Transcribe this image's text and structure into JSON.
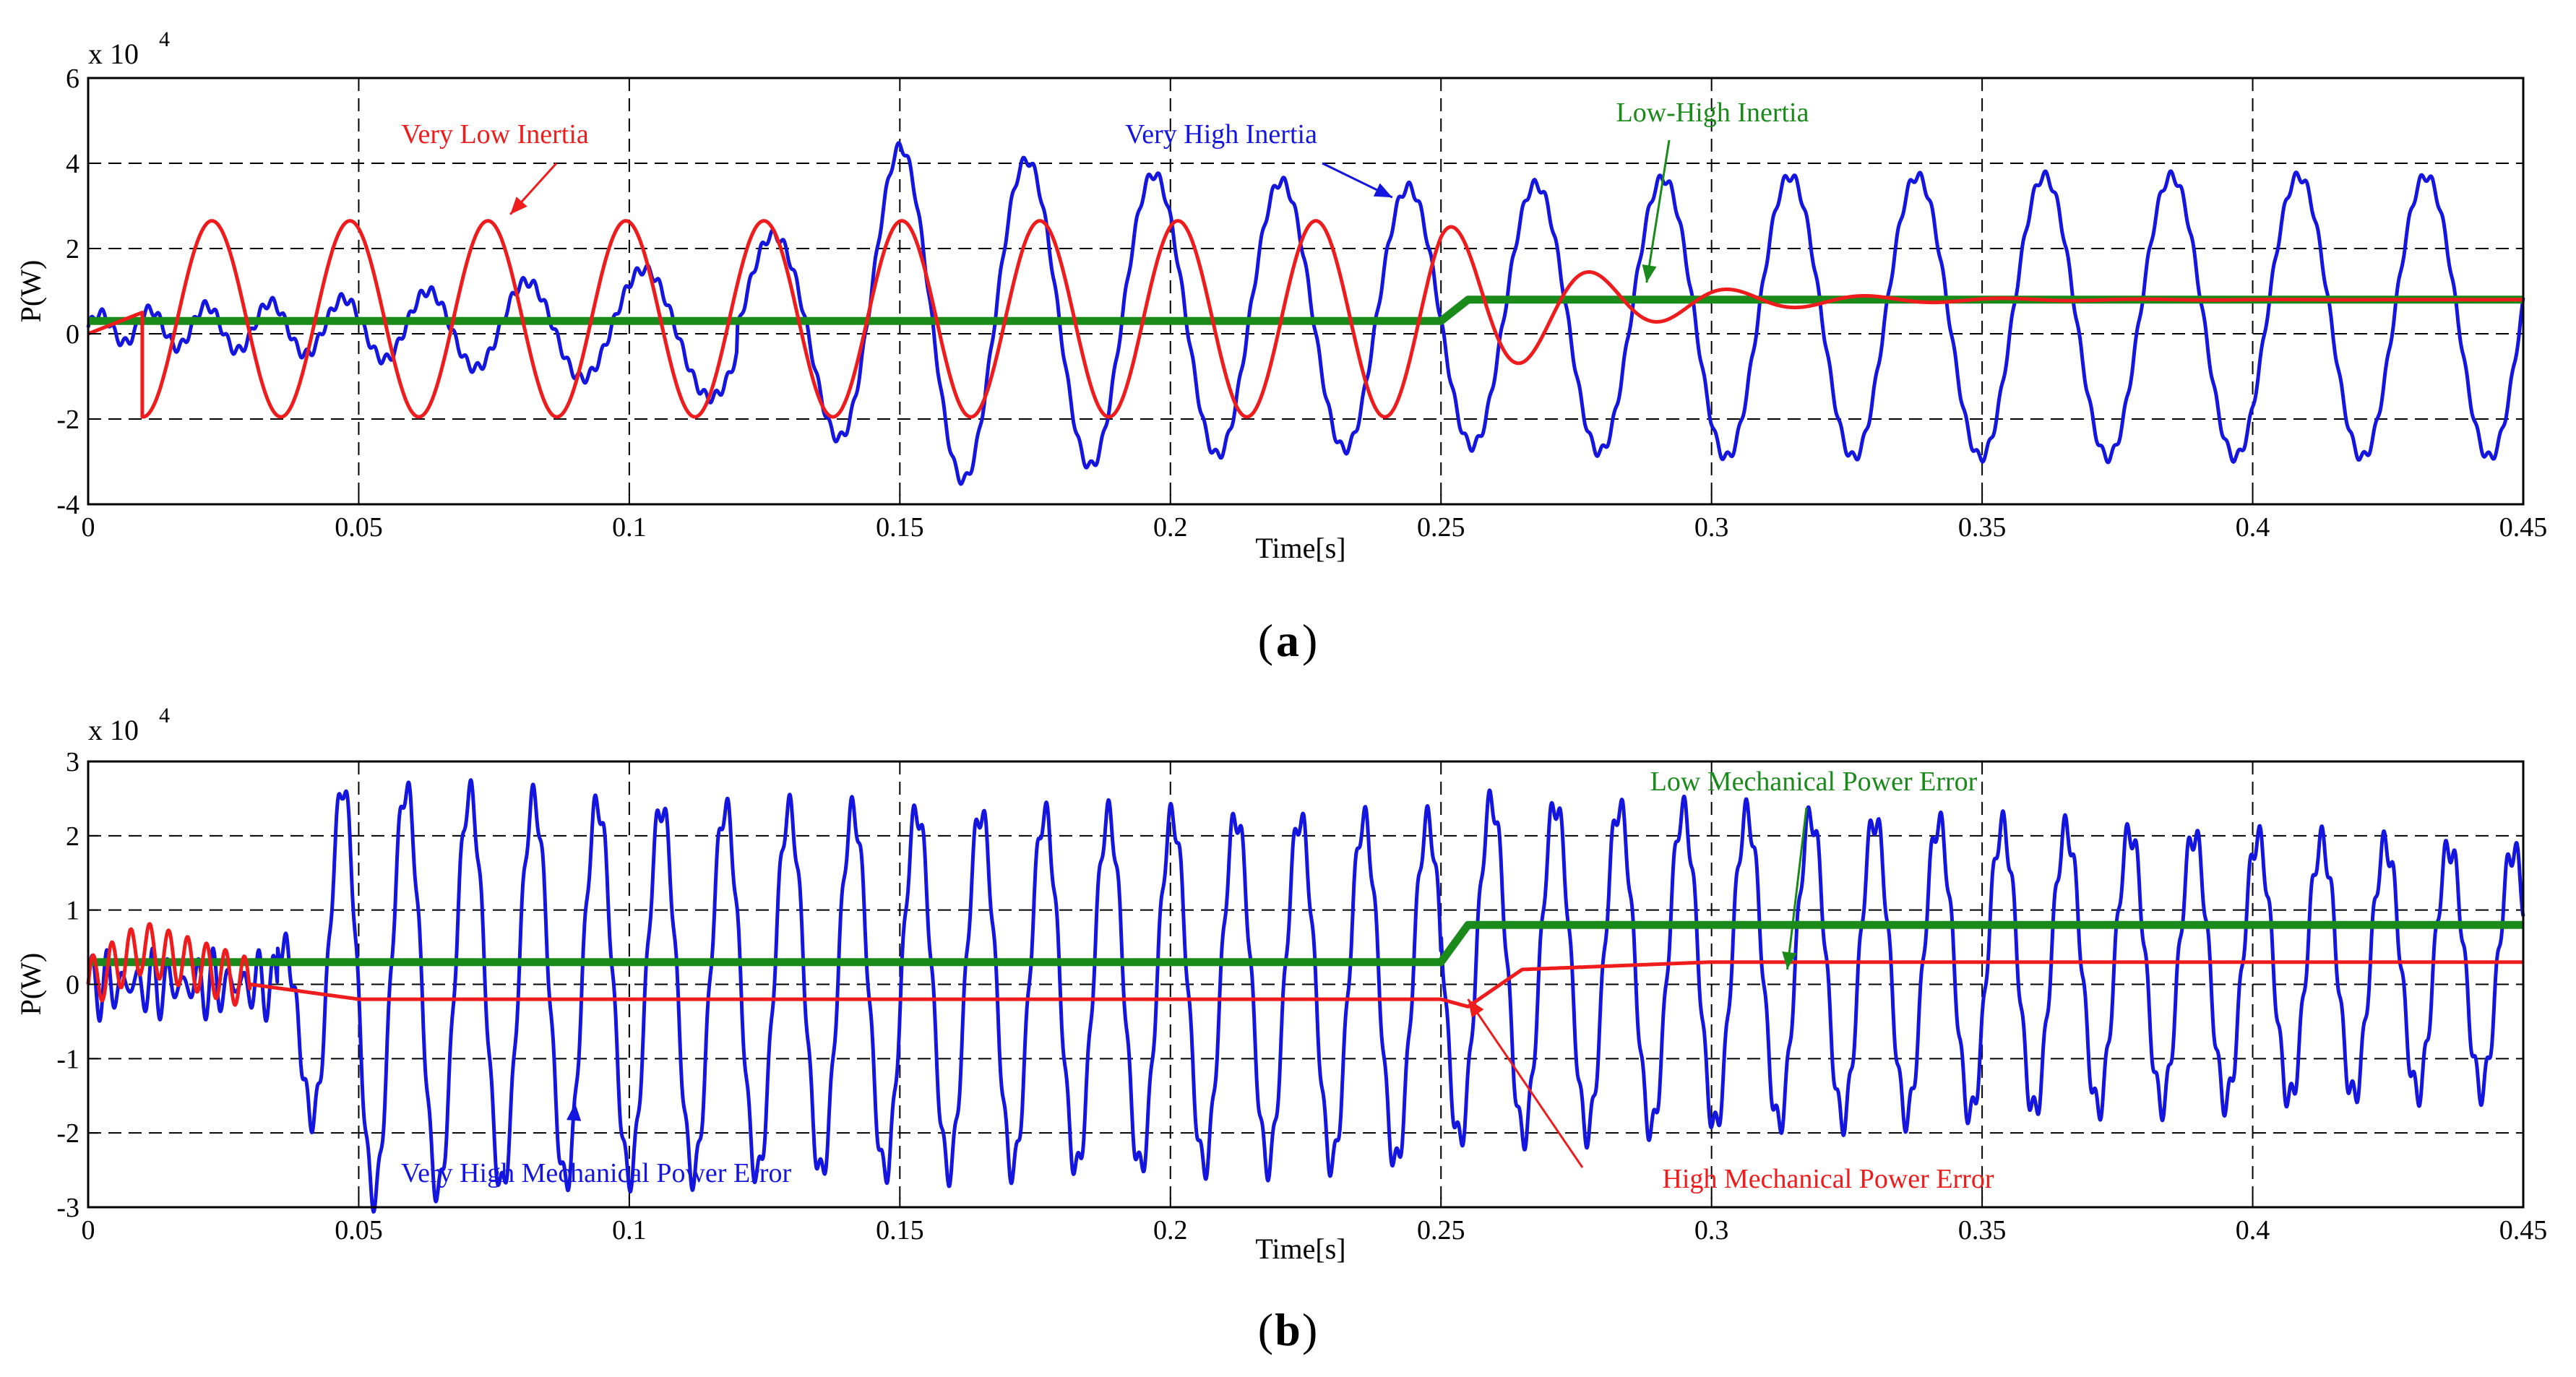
{
  "figure_labels": {
    "a": "a",
    "b": "b"
  },
  "chart_data": [
    {
      "type": "line",
      "panel": "a",
      "xlabel": "Time[s]",
      "ylabel": "P(W)",
      "y_multiplier": "x 10",
      "y_exponent": "4",
      "xlim": [
        0,
        0.45
      ],
      "ylim": [
        -4,
        6
      ],
      "xticks": [
        0,
        0.05,
        0.1,
        0.15,
        0.2,
        0.25,
        0.3,
        0.35,
        0.4,
        0.45
      ],
      "xtick_labels": [
        "0",
        "0.05",
        "0.1",
        "0.15",
        "0.2",
        "0.25",
        "0.3",
        "0.35",
        "0.4",
        "0.45"
      ],
      "yticks": [
        -4,
        -2,
        0,
        2,
        4,
        6
      ],
      "ytick_labels": [
        "-4",
        "-2",
        "0",
        "2",
        "4",
        "6"
      ],
      "grid": true,
      "colors": {
        "very_high": "#1515e0",
        "very_low": "#ee1c1c",
        "low_high": "#1a8a1a"
      },
      "series": [
        {
          "name": "Very High Inertia",
          "color": "#1515e0",
          "description": "oscillation growing from ~0.5 to ~4 (x10^4 W), period ~0.024 s",
          "x": [
            0,
            0.02,
            0.05,
            0.1,
            0.13,
            0.15,
            0.2,
            0.25,
            0.3,
            0.35,
            0.4,
            0.45
          ],
          "amplitude": [
            0.3,
            0.5,
            0.7,
            1.3,
            2.0,
            4.0,
            3.3,
            3.0,
            3.3,
            3.3,
            3.3,
            3.3
          ]
        },
        {
          "name": "Very Low Inertia",
          "color": "#ee1c1c",
          "description": "damped oscillation settling to ~0.8 (x10^4 W)",
          "x": [
            0.023,
            0.035,
            0.05,
            0.06,
            0.075,
            0.087,
            0.1,
            0.12,
            0.15,
            0.2,
            0.25,
            0.265,
            0.285,
            0.3,
            0.325,
            0.45
          ],
          "y": [
            2.7,
            -2.0,
            2.6,
            -1.9,
            2.6,
            -1.9,
            2.5,
            2.5,
            2.3,
            2.4,
            2.2,
            -0.2,
            1.4,
            0.4,
            1.1,
            0.8
          ]
        },
        {
          "name": "Low-High Inertia",
          "color": "#1a8a1a",
          "x": [
            0,
            0.25,
            0.255,
            0.45
          ],
          "y": [
            0.3,
            0.3,
            0.8,
            0.8
          ]
        }
      ],
      "annotations": [
        {
          "text": "Very Low Inertia",
          "color": "#ee1c1c",
          "points_to": [
            0.078,
            2.8
          ]
        },
        {
          "text": "Very High Inertia",
          "color": "#1515e0",
          "points_to": [
            0.241,
            3.2
          ]
        },
        {
          "text": "Low-High Inertia",
          "color": "#1a8a1a",
          "points_to": [
            0.288,
            1.2
          ]
        }
      ]
    },
    {
      "type": "line",
      "panel": "b",
      "xlabel": "Time[s]",
      "ylabel": "P(W)",
      "y_multiplier": "x 10",
      "y_exponent": "4",
      "xlim": [
        0,
        0.45
      ],
      "ylim": [
        -3,
        3
      ],
      "xticks": [
        0,
        0.05,
        0.1,
        0.15,
        0.2,
        0.25,
        0.3,
        0.35,
        0.4,
        0.45
      ],
      "xtick_labels": [
        "0",
        "0.05",
        "0.1",
        "0.15",
        "0.2",
        "0.25",
        "0.3",
        "0.35",
        "0.4",
        "0.45"
      ],
      "yticks": [
        -3,
        -2,
        -1,
        0,
        1,
        2,
        3
      ],
      "ytick_labels": [
        "-3",
        "-2",
        "-1",
        "0",
        "1",
        "2",
        "3"
      ],
      "grid": true,
      "series": [
        {
          "name": "Very High Mechanical Power Error",
          "color": "#1515e0",
          "description": "fast oscillation, amplitude ~2.5 (x10^4 W), period ~0.0115 s after t=0.035",
          "x": [
            0,
            0.035,
            0.047,
            0.1,
            0.25,
            0.45
          ],
          "amplitude": [
            0.5,
            0.5,
            2.8,
            2.5,
            2.3,
            1.6
          ]
        },
        {
          "name": "High Mechanical Power Error",
          "color": "#ee1c1c",
          "x": [
            0,
            0.01,
            0.03,
            0.05,
            0.25,
            0.255,
            0.265,
            0.3,
            0.45
          ],
          "y": [
            0,
            0.5,
            0,
            -0.2,
            -0.2,
            -0.3,
            0.2,
            0.3,
            0.3
          ]
        },
        {
          "name": "Low Mechanical Power Error",
          "color": "#1a8a1a",
          "x": [
            0,
            0.25,
            0.255,
            0.45
          ],
          "y": [
            0.3,
            0.3,
            0.8,
            0.8
          ]
        }
      ],
      "annotations": [
        {
          "text": "Low Mechanical Power Error",
          "color": "#1a8a1a",
          "points_to": [
            0.314,
            0.2
          ]
        },
        {
          "text": "Very High Mechanical Power Error",
          "color": "#1515e0",
          "points_to": [
            0.09,
            -1.6
          ]
        },
        {
          "text": "High Mechanical Power Error",
          "color": "#ee1c1c",
          "points_to": [
            0.255,
            -0.2
          ]
        }
      ]
    }
  ]
}
